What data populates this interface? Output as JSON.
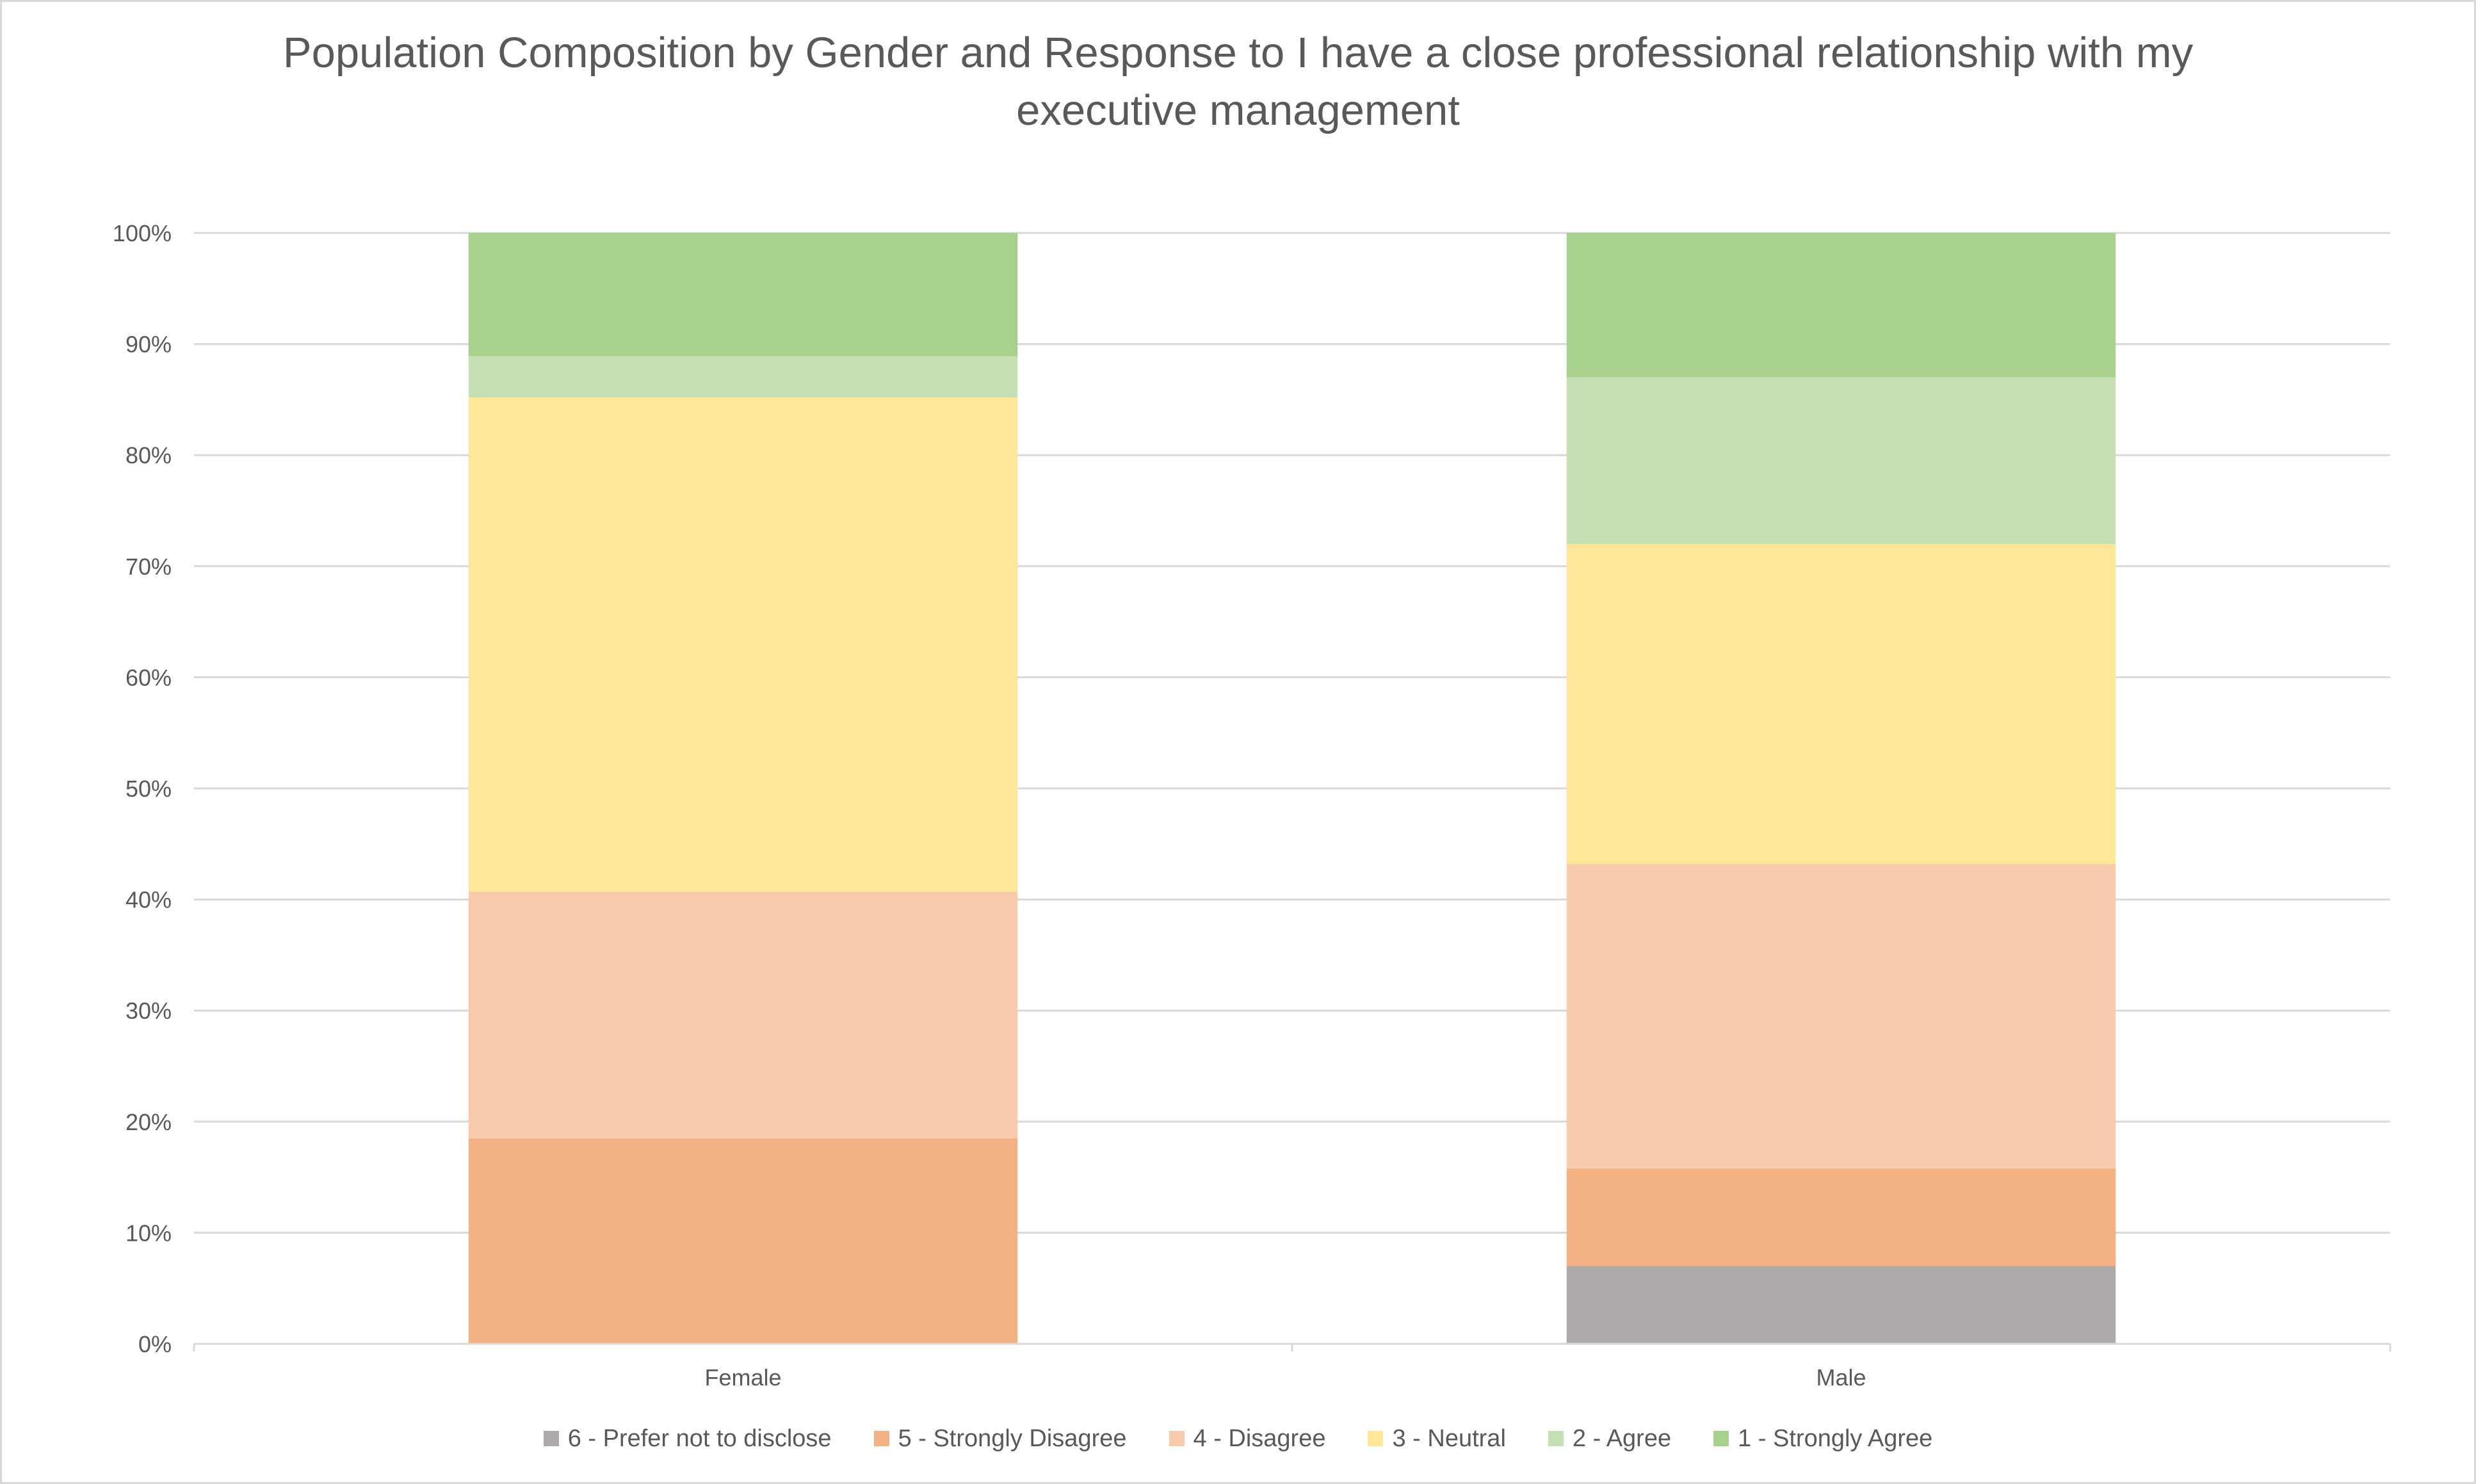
{
  "chart_data": {
    "type": "bar",
    "stacked": true,
    "title": "Population Composition by Gender and Response to I have a close professional relationship with my executive management",
    "categories": [
      "Female",
      "Male"
    ],
    "ylim": [
      0,
      100
    ],
    "y_tick_labels": [
      "0%",
      "10%",
      "20%",
      "30%",
      "40%",
      "50%",
      "60%",
      "70%",
      "80%",
      "90%",
      "100%"
    ],
    "y_ticks": [
      0,
      10,
      20,
      30,
      40,
      50,
      60,
      70,
      80,
      90,
      100
    ],
    "grid": true,
    "legend_position": "bottom",
    "series": [
      {
        "name": "6 - Prefer not to disclose",
        "color": "#aeaaaa",
        "values": [
          0,
          7.0
        ]
      },
      {
        "name": "5 - Strongly Disagree",
        "color": "#f4b183",
        "values": [
          18.5,
          8.8
        ]
      },
      {
        "name": "4 - Disagree",
        "color": "#f8cbad",
        "values": [
          22.2,
          27.4
        ]
      },
      {
        "name": "3 - Neutral",
        "color": "#ffe699",
        "values": [
          44.5,
          28.8
        ]
      },
      {
        "name": "2 - Agree",
        "color": "#c5e0b4",
        "values": [
          3.7,
          15.0
        ]
      },
      {
        "name": "1 - Strongly Agree",
        "color": "#a9d18e",
        "values": [
          11.1,
          13.0
        ]
      }
    ]
  }
}
